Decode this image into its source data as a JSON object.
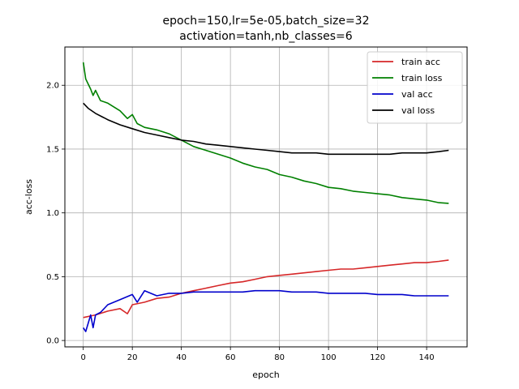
{
  "chart_data": {
    "type": "line",
    "title_lines": [
      "epoch=150,lr=5e-05,batch_size=32",
      "activation=tanh,nb_classes=6"
    ],
    "xlabel": "epoch",
    "ylabel": "acc-loss",
    "xlim": [
      -7.5,
      156.5
    ],
    "ylim": [
      -0.05,
      2.3
    ],
    "xticks": [
      0,
      20,
      40,
      60,
      80,
      100,
      120,
      140
    ],
    "yticks": [
      0.0,
      0.5,
      1.0,
      1.5,
      2.0
    ],
    "xtick_labels": [
      "0",
      "20",
      "40",
      "60",
      "80",
      "100",
      "120",
      "140"
    ],
    "ytick_labels": [
      "0.0",
      "0.5",
      "1.0",
      "1.5",
      "2.0"
    ],
    "grid": true,
    "legend_position": "top-right",
    "series": [
      {
        "name": "train acc",
        "color": "#d62728",
        "x": [
          0,
          5,
          10,
          15,
          18,
          20,
          25,
          30,
          35,
          40,
          45,
          50,
          55,
          60,
          65,
          70,
          75,
          80,
          85,
          90,
          95,
          100,
          105,
          110,
          115,
          120,
          125,
          130,
          135,
          140,
          145,
          149
        ],
        "y": [
          0.18,
          0.2,
          0.23,
          0.25,
          0.21,
          0.28,
          0.3,
          0.33,
          0.34,
          0.37,
          0.39,
          0.41,
          0.43,
          0.45,
          0.46,
          0.48,
          0.5,
          0.51,
          0.52,
          0.53,
          0.54,
          0.55,
          0.56,
          0.56,
          0.57,
          0.58,
          0.59,
          0.6,
          0.61,
          0.61,
          0.62,
          0.63
        ]
      },
      {
        "name": "train loss",
        "color": "#008000",
        "x": [
          0,
          1,
          3,
          4,
          5,
          7,
          10,
          15,
          18,
          20,
          22,
          25,
          30,
          35,
          40,
          45,
          50,
          55,
          60,
          65,
          70,
          75,
          80,
          85,
          90,
          95,
          100,
          105,
          110,
          115,
          120,
          125,
          130,
          135,
          140,
          145,
          149
        ],
        "y": [
          2.18,
          2.05,
          1.97,
          1.92,
          1.96,
          1.88,
          1.86,
          1.8,
          1.74,
          1.77,
          1.7,
          1.67,
          1.65,
          1.62,
          1.57,
          1.52,
          1.49,
          1.46,
          1.43,
          1.39,
          1.36,
          1.34,
          1.3,
          1.28,
          1.25,
          1.23,
          1.2,
          1.19,
          1.17,
          1.16,
          1.15,
          1.14,
          1.12,
          1.11,
          1.1,
          1.08,
          1.075
        ]
      },
      {
        "name": "val acc",
        "color": "#0000cc",
        "x": [
          0,
          1,
          3,
          4,
          5,
          7,
          10,
          15,
          20,
          22,
          25,
          30,
          35,
          40,
          45,
          50,
          55,
          60,
          65,
          70,
          75,
          80,
          85,
          90,
          95,
          100,
          105,
          110,
          115,
          120,
          125,
          130,
          135,
          140,
          145,
          149
        ],
        "y": [
          0.1,
          0.07,
          0.2,
          0.1,
          0.2,
          0.22,
          0.28,
          0.32,
          0.36,
          0.3,
          0.39,
          0.35,
          0.37,
          0.37,
          0.38,
          0.38,
          0.38,
          0.38,
          0.38,
          0.39,
          0.39,
          0.39,
          0.38,
          0.38,
          0.38,
          0.37,
          0.37,
          0.37,
          0.37,
          0.36,
          0.36,
          0.36,
          0.35,
          0.35,
          0.35,
          0.35
        ]
      },
      {
        "name": "val loss",
        "color": "#000000",
        "x": [
          0,
          2,
          5,
          10,
          15,
          20,
          25,
          30,
          35,
          40,
          45,
          50,
          55,
          60,
          65,
          70,
          75,
          80,
          85,
          90,
          95,
          100,
          105,
          110,
          115,
          120,
          125,
          130,
          135,
          140,
          145,
          149
        ],
        "y": [
          1.86,
          1.82,
          1.78,
          1.73,
          1.69,
          1.66,
          1.63,
          1.61,
          1.59,
          1.57,
          1.56,
          1.54,
          1.53,
          1.52,
          1.51,
          1.5,
          1.49,
          1.48,
          1.47,
          1.47,
          1.47,
          1.46,
          1.46,
          1.46,
          1.46,
          1.46,
          1.46,
          1.47,
          1.47,
          1.47,
          1.48,
          1.49
        ]
      }
    ]
  }
}
